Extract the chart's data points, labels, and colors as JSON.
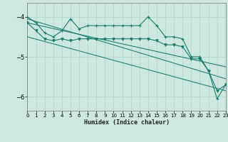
{
  "title": "",
  "xlabel": "Humidex (Indice chaleur)",
  "xlim": [
    0,
    23
  ],
  "ylim": [
    -6.35,
    -3.65
  ],
  "yticks": [
    -6,
    -5,
    -4
  ],
  "xticks": [
    0,
    1,
    2,
    3,
    4,
    5,
    6,
    7,
    8,
    9,
    10,
    11,
    12,
    13,
    14,
    15,
    16,
    17,
    18,
    19,
    20,
    21,
    22,
    23
  ],
  "bg_color": "#cce8e0",
  "grid_color": "#aad4cc",
  "line_color": "#1a7a6e",
  "line1_x": [
    0,
    1,
    2,
    3,
    4,
    5,
    6,
    7,
    8,
    9,
    10,
    11,
    12,
    13,
    14,
    15,
    16,
    17,
    18,
    19,
    20,
    21,
    22,
    23
  ],
  "line1_y": [
    -4.0,
    -4.15,
    -4.4,
    -4.5,
    -4.35,
    -4.05,
    -4.3,
    -4.22,
    -4.22,
    -4.22,
    -4.22,
    -4.22,
    -4.22,
    -4.22,
    -4.0,
    -4.22,
    -4.5,
    -4.5,
    -4.55,
    -5.0,
    -5.0,
    -5.35,
    -6.05,
    -5.7
  ],
  "line2_x": [
    0,
    1,
    2,
    3,
    4,
    5,
    6,
    7,
    8,
    9,
    10,
    11,
    12,
    13,
    14,
    15,
    16,
    17,
    18,
    19,
    20,
    21,
    22,
    23
  ],
  "line2_y": [
    -4.15,
    -4.35,
    -4.55,
    -4.6,
    -4.55,
    -4.6,
    -4.55,
    -4.55,
    -4.55,
    -4.55,
    -4.55,
    -4.55,
    -4.55,
    -4.55,
    -4.55,
    -4.6,
    -4.7,
    -4.7,
    -4.75,
    -5.05,
    -5.05,
    -5.35,
    -5.85,
    -5.7
  ],
  "line3_x": [
    0,
    23
  ],
  "line3_y": [
    -4.05,
    -5.55
  ],
  "line4_x": [
    0,
    23
  ],
  "line4_y": [
    -4.15,
    -5.25
  ],
  "line5_x": [
    0,
    23
  ],
  "line5_y": [
    -4.5,
    -5.85
  ]
}
